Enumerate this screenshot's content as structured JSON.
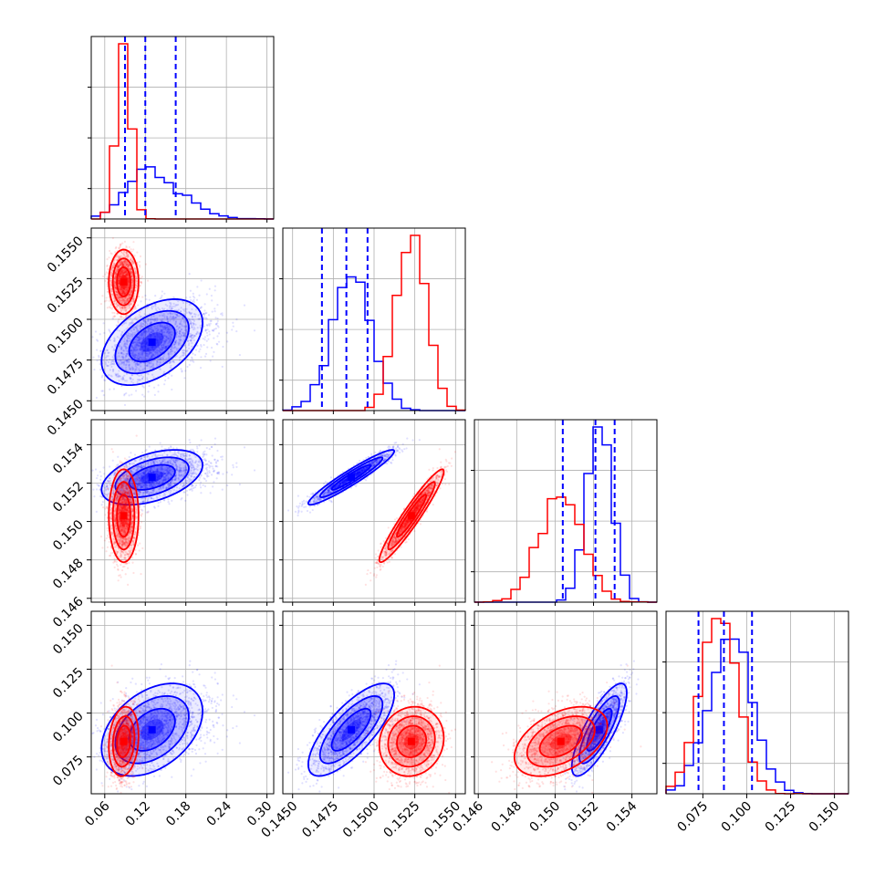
{
  "chart_data": {
    "type": "corner",
    "title": "",
    "parameters": [
      "",
      "",
      "",
      ""
    ],
    "colors": {
      "blue": "#0000ff",
      "red": "#ff0000",
      "grid": "#b0b0b0",
      "frame": "#000000"
    },
    "grid": true,
    "ranges": [
      [
        0.04,
        0.31
      ],
      [
        0.1444,
        0.1556
      ],
      [
        0.1458,
        0.1553
      ],
      [
        0.054,
        0.158
      ]
    ],
    "ticks": {
      "p0_x": [
        "0.06",
        "0.12",
        "0.18",
        "0.24",
        "0.30"
      ],
      "p1_x": [
        "0.1450",
        "0.1475",
        "0.1500",
        "0.1525",
        "0.1550"
      ],
      "p1_y": [
        "0.1450",
        "0.1475",
        "0.1500",
        "0.1525",
        "0.1550"
      ],
      "p2_x": [
        "0.146",
        "0.148",
        "0.150",
        "0.152",
        "0.154"
      ],
      "p2_y": [
        "0.146",
        "0.148",
        "0.150",
        "0.152",
        "0.154"
      ],
      "p3_x": [
        "0.075",
        "0.100",
        "0.125",
        "0.150"
      ],
      "p3_y": [
        "0.075",
        "0.100",
        "0.125",
        "0.150"
      ]
    },
    "series": [
      {
        "color": "blue",
        "mean": [
          0.13,
          0.1486,
          0.1523,
          0.0905
        ],
        "std": [
          0.034,
          0.0012,
          0.00065,
          0.012
        ],
        "corr": [
          [
            1.0,
            0.45,
            0.45,
            0.4
          ],
          [
            0.45,
            1.0,
            0.95,
            0.75
          ],
          [
            0.45,
            0.95,
            1.0,
            0.8
          ],
          [
            0.4,
            0.75,
            0.8,
            1.0
          ]
        ],
        "quantiles": [
          [
            0.09,
            0.12,
            0.165
          ],
          [
            0.1468,
            0.1483,
            0.1496
          ],
          [
            0.1504,
            0.1521,
            0.1531
          ],
          [
            0.0725,
            0.087,
            0.103
          ]
        ]
      },
      {
        "color": "red",
        "mean": [
          0.088,
          0.1523,
          0.1503,
          0.0838
        ],
        "std": [
          0.01,
          0.0009,
          0.0011,
          0.009
        ],
        "corr": [
          [
            1.0,
            0.0,
            0.0,
            0.15
          ],
          [
            0.0,
            1.0,
            0.95,
            0.1
          ],
          [
            0.0,
            0.95,
            1.0,
            0.45
          ],
          [
            0.15,
            0.1,
            0.45,
            1.0
          ]
        ],
        "quantiles": []
      }
    ],
    "quantile_color": "blue",
    "bins": 20
  }
}
